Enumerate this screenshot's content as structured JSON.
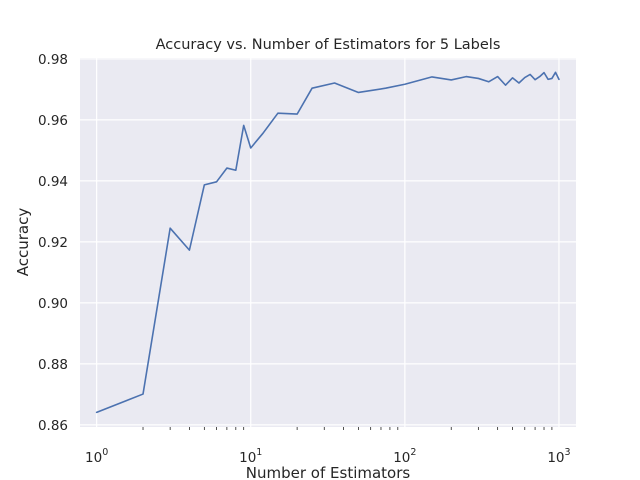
{
  "chart_data": {
    "type": "line",
    "title": "Accuracy vs. Number of Estimators for 5 Labels",
    "xlabel": "Number of Estimators",
    "ylabel": "Accuracy",
    "xscale": "log",
    "xlim": [
      0.78,
      1290
    ],
    "ylim": [
      0.8593,
      0.9803
    ],
    "grid": true,
    "x_ticks": [
      {
        "value": 1,
        "base": "10",
        "exp": "0"
      },
      {
        "value": 10,
        "base": "10",
        "exp": "1"
      },
      {
        "value": 100,
        "base": "10",
        "exp": "2"
      },
      {
        "value": 1000,
        "base": "10",
        "exp": "3"
      }
    ],
    "y_ticks": [
      "0.86",
      "0.88",
      "0.90",
      "0.92",
      "0.94",
      "0.96",
      "0.98"
    ],
    "series": [
      {
        "color": "#4c72b0",
        "x": [
          1,
          2,
          3,
          4,
          5,
          6,
          7,
          8,
          9,
          10,
          12,
          15,
          20,
          25,
          35,
          50,
          75,
          100,
          150,
          200,
          250,
          300,
          350,
          400,
          450,
          500,
          550,
          600,
          650,
          700,
          750,
          800,
          850,
          900,
          950,
          1000
        ],
        "y": [
          0.8641,
          0.8701,
          0.9245,
          0.9173,
          0.9387,
          0.9397,
          0.9442,
          0.9435,
          0.9582,
          0.9508,
          0.9556,
          0.9622,
          0.9619,
          0.9704,
          0.9721,
          0.969,
          0.9704,
          0.9717,
          0.9741,
          0.9731,
          0.9742,
          0.9736,
          0.9725,
          0.9742,
          0.9714,
          0.9738,
          0.9721,
          0.9739,
          0.9749,
          0.9732,
          0.9742,
          0.9755,
          0.9733,
          0.9736,
          0.9756,
          0.9733
        ]
      }
    ]
  }
}
